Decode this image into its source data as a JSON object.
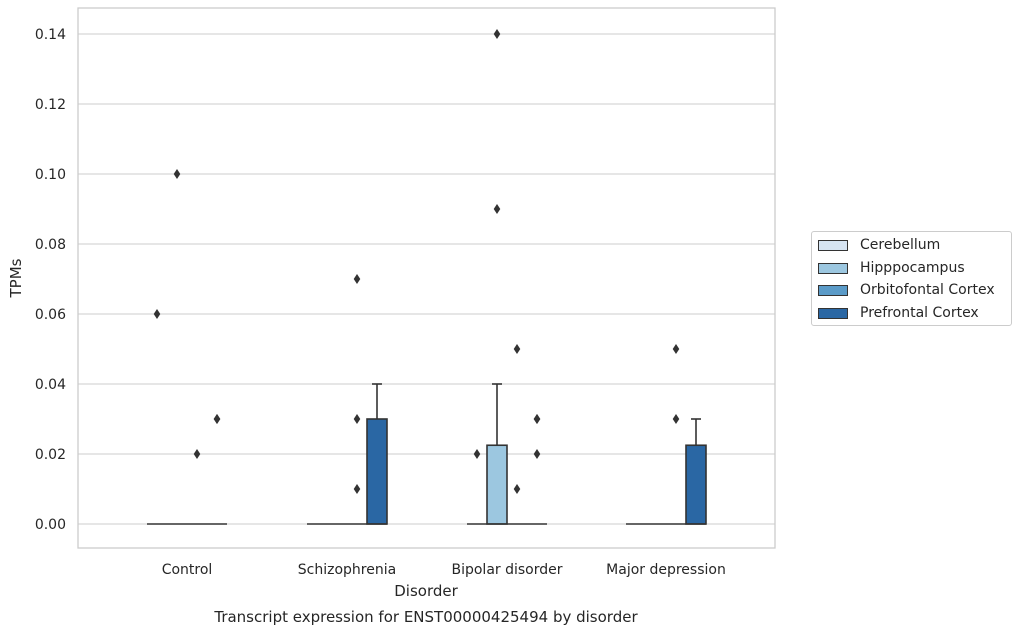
{
  "chart_data": {
    "type": "box",
    "title": "Transcript expression for ENST00000425494 by disorder",
    "xlabel": "Disorder",
    "ylabel": "TPMs",
    "categories": [
      "Control",
      "Schizophrenia",
      "Bipolar disorder",
      "Major depression"
    ],
    "ylim": [
      -0.007,
      0.147
    ],
    "yticks": [
      "0.00",
      "0.02",
      "0.04",
      "0.06",
      "0.08",
      "0.10",
      "0.12",
      "0.14"
    ],
    "grid": "horizontal",
    "legend_position": "right",
    "series": [
      {
        "name": "Cerebellum",
        "color": "#d6e4f2",
        "boxes": [
          {
            "q1": 0,
            "median": 0,
            "q3": 0,
            "whislo": 0,
            "whishi": 0,
            "fliers": [
              0.06
            ]
          },
          {
            "q1": 0,
            "median": 0,
            "q3": 0,
            "whislo": 0,
            "whishi": 0,
            "fliers": []
          },
          {
            "q1": 0,
            "median": 0,
            "q3": 0,
            "whislo": 0,
            "whishi": 0,
            "fliers": [
              0.02
            ]
          },
          {
            "q1": 0,
            "median": 0,
            "q3": 0,
            "whislo": 0,
            "whishi": 0,
            "fliers": []
          }
        ]
      },
      {
        "name": "Hipppocampus",
        "color": "#9cc7e0",
        "boxes": [
          {
            "q1": 0,
            "median": 0,
            "q3": 0,
            "whislo": 0,
            "whishi": 0,
            "fliers": [
              0.1
            ]
          },
          {
            "q1": 0,
            "median": 0,
            "q3": 0,
            "whislo": 0,
            "whishi": 0,
            "fliers": []
          },
          {
            "q1": 0,
            "median": 0,
            "q3": 0.0225,
            "whislo": 0,
            "whishi": 0.04,
            "fliers": [
              0.14,
              0.09
            ]
          },
          {
            "q1": 0,
            "median": 0,
            "q3": 0,
            "whislo": 0,
            "whishi": 0,
            "fliers": []
          }
        ]
      },
      {
        "name": "Orbitofontal Cortex",
        "color": "#5b9bc8",
        "boxes": [
          {
            "q1": 0,
            "median": 0,
            "q3": 0,
            "whislo": 0,
            "whishi": 0,
            "fliers": [
              0.02
            ]
          },
          {
            "q1": 0,
            "median": 0,
            "q3": 0,
            "whislo": 0,
            "whishi": 0,
            "fliers": [
              0.07,
              0.03,
              0.01
            ]
          },
          {
            "q1": 0,
            "median": 0,
            "q3": 0,
            "whislo": 0,
            "whishi": 0,
            "fliers": [
              0.01,
              0.05
            ]
          },
          {
            "q1": 0,
            "median": 0,
            "q3": 0,
            "whislo": 0,
            "whishi": 0,
            "fliers": [
              0.05,
              0.03
            ]
          }
        ]
      },
      {
        "name": "Prefrontal Cortex",
        "color": "#2a67a4",
        "boxes": [
          {
            "q1": 0,
            "median": 0,
            "q3": 0,
            "whislo": 0,
            "whishi": 0,
            "fliers": [
              0.03,
              0.03
            ]
          },
          {
            "q1": 0,
            "median": 0,
            "q3": 0.03,
            "whislo": 0,
            "whishi": 0.04,
            "fliers": []
          },
          {
            "q1": 0,
            "median": 0,
            "q3": 0,
            "whislo": 0,
            "whishi": 0,
            "fliers": [
              0.03,
              0.03,
              0.02
            ]
          },
          {
            "q1": 0,
            "median": 0,
            "q3": 0.0225,
            "whislo": 0,
            "whishi": 0.03,
            "fliers": []
          }
        ]
      }
    ]
  }
}
